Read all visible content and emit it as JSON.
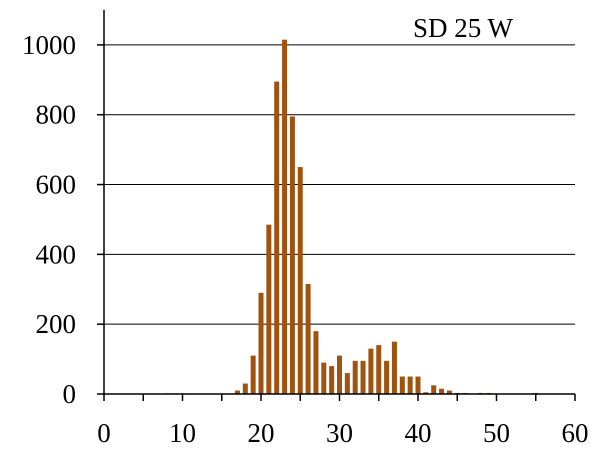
{
  "chart_data": {
    "type": "bar",
    "annotation": "SD 25 W",
    "title": "",
    "xlabel": "",
    "ylabel": "",
    "xlim": [
      0,
      60
    ],
    "ylim": [
      0,
      1000
    ],
    "ylim_plot_max": 1100,
    "x_ticks": [
      0,
      10,
      20,
      30,
      40,
      50,
      60
    ],
    "x_tick_labels": [
      "0",
      "10",
      "20",
      "30",
      "40",
      "50",
      "60"
    ],
    "y_ticks": [
      0,
      200,
      400,
      600,
      800,
      1000
    ],
    "y_tick_labels": [
      "0",
      "200",
      "400",
      "600",
      "800",
      "1000"
    ],
    "grid": "horizontal",
    "bar_color": "#A0520F",
    "x": [
      8,
      9,
      10,
      17,
      18,
      19,
      20,
      21,
      22,
      23,
      24,
      25,
      26,
      27,
      28,
      29,
      30,
      31,
      32,
      33,
      34,
      35,
      36,
      37,
      38,
      39,
      40,
      41,
      42,
      43,
      44,
      45,
      46,
      48,
      49,
      55
    ],
    "values": [
      2,
      2,
      2,
      10,
      30,
      110,
      290,
      485,
      895,
      1015,
      795,
      650,
      315,
      180,
      90,
      80,
      110,
      60,
      95,
      95,
      130,
      140,
      95,
      150,
      50,
      50,
      50,
      5,
      25,
      15,
      10,
      3,
      3,
      3,
      3,
      3
    ]
  }
}
